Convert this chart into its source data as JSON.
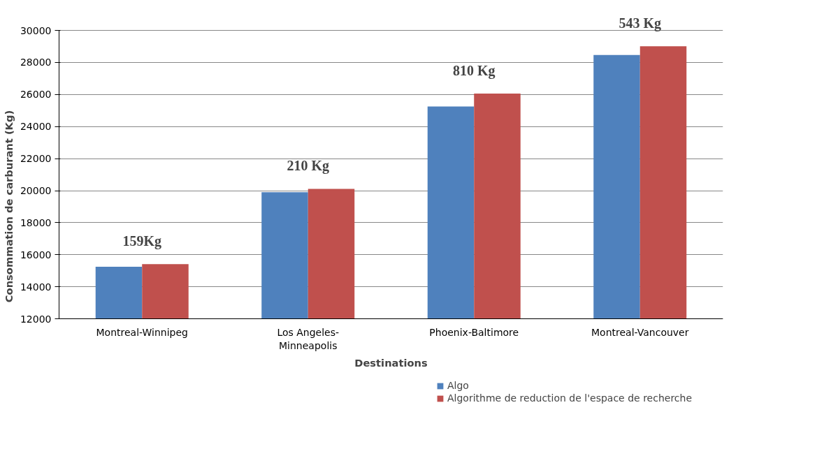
{
  "chart_data": {
    "type": "bar",
    "xlabel": "Destinations",
    "ylabel": "Consommation de carburant (Kg)",
    "categories": [
      "Montreal-Winnipeg",
      "Los Angeles-Minneapolis",
      "Phoenix-Baltimore",
      "Montreal-Vancouver"
    ],
    "series": [
      {
        "name": "Algo",
        "color": "#4f81bd",
        "values": [
          15250,
          19900,
          25250,
          28470
        ]
      },
      {
        "name": "Algorithme de reduction de l'espace de recherche",
        "color": "#c0504d",
        "values": [
          15410,
          20110,
          26060,
          29010
        ]
      }
    ],
    "ylim": [
      12000,
      30000
    ],
    "yticks": [
      12000,
      14000,
      16000,
      18000,
      20000,
      22000,
      24000,
      26000,
      28000,
      30000
    ],
    "grid": "y",
    "legend": "bottom right",
    "annotations": [
      {
        "text": "159Kg",
        "x": "Montreal-Winnipeg",
        "y": 15410
      },
      {
        "text": "210 Kg",
        "x": "Los Angeles-Minneapolis",
        "y": 20110
      },
      {
        "text": "810 Kg",
        "x": "Phoenix-Baltimore",
        "y": 26060
      },
      {
        "text": "543 Kg",
        "x": "Montreal-Vancouver",
        "y": 29010
      }
    ]
  }
}
